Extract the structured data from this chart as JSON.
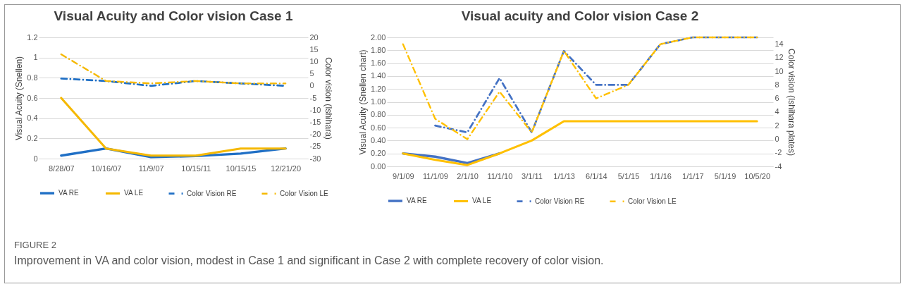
{
  "chart_data": [
    {
      "type": "line",
      "title": "Visual Acuity and Color vision Case 1",
      "ylabel": "Visual Acuity (Snellen)",
      "y2label": "Color vision (Ishihara)",
      "categories": [
        "8/28/07",
        "10/16/07",
        "11/9/07",
        "10/15/11",
        "10/15/15",
        "12/21/20"
      ],
      "series": [
        {
          "name": "VA RE",
          "color": "#1f6fc5",
          "line_style": "solid",
          "values": [
            0.03,
            0.1,
            0.015,
            0.025,
            0.05,
            0.1
          ]
        },
        {
          "name": "VA LE",
          "color": "#f5b800",
          "line_style": "solid",
          "values": [
            0.6,
            0.1,
            0.03,
            0.03,
            0.1,
            0.1
          ]
        },
        {
          "name": "Color Vision RE",
          "color": "#1f6fc5",
          "line_style": "dashed",
          "axis": "y2",
          "values": [
            3,
            2,
            0,
            2,
            1,
            0
          ]
        },
        {
          "name": "Color Vision LE",
          "color": "#f5b800",
          "line_style": "dashed",
          "axis": "y2",
          "values": [
            13,
            2,
            1,
            2,
            1,
            1
          ]
        }
      ],
      "ylim": [
        0,
        1.2
      ],
      "yticks": [
        0,
        0.2,
        0.4,
        0.6,
        0.8,
        1,
        1.2
      ],
      "y2lim": [
        -30,
        20
      ],
      "y2ticks": [
        -30,
        -25,
        -20,
        -15,
        -10,
        -5,
        0,
        5,
        10,
        15,
        20
      ],
      "grid": "y",
      "legend": "bottom",
      "annotations": [
        "FIGURE 2",
        "Improvement in VA and color vision, modest in Case 1 and significant in Case 2 with complete recovery of color vision."
      ]
    },
    {
      "type": "line",
      "title": "Visual acuity and Color vision Case 2",
      "ylabel": "Visual Acuity (Snellen chart)",
      "y2label": "Color vision (Ishihara plates)",
      "categories": [
        "9/1/09",
        "11/1/09",
        "2/1/10",
        "11/1/10",
        "3/1/11",
        "1/1/13",
        "6/1/14",
        "5/1/15",
        "1/1/16",
        "1/1/17",
        "5/1/19",
        "10/5/20"
      ],
      "series": [
        {
          "name": "VA RE",
          "color": "#4472c4",
          "line_style": "solid",
          "values": [
            0.2,
            0.15,
            0.05,
            0.2,
            null,
            null,
            null,
            null,
            null,
            null,
            null,
            null
          ]
        },
        {
          "name": "VA LE",
          "color": "#ffc000",
          "line_style": "solid",
          "values": [
            0.2,
            0.1,
            0.02,
            0.2,
            0.4,
            0.7,
            0.7,
            0.7,
            0.7,
            0.7,
            0.7,
            0.7
          ]
        },
        {
          "name": "Color Vision RE",
          "color": "#4472c4",
          "line_style": "dashed",
          "axis": "y2",
          "values": [
            null,
            2,
            1,
            9,
            1,
            13,
            8,
            8,
            14,
            15,
            15,
            15
          ]
        },
        {
          "name": "Color Vision LE",
          "color": "#ffc000",
          "line_style": "dashed",
          "axis": "y2",
          "values": [
            14,
            3,
            0,
            7,
            1,
            13,
            6,
            8,
            14,
            15,
            15,
            15
          ]
        }
      ],
      "ylim": [
        0,
        2
      ],
      "yticks": [
        {
          "value": 0,
          "label": "0.00"
        },
        {
          "value": 0.2,
          "label": "0.20"
        },
        {
          "value": 0.4,
          "label": "0.40"
        },
        {
          "value": 0.6,
          "label": "0.60"
        },
        {
          "value": 0.8,
          "label": "0.80"
        },
        {
          "value": 1,
          "label": "1.00"
        },
        {
          "value": 1.2,
          "label": "1.20"
        },
        {
          "value": 1.4,
          "label": "1.40"
        },
        {
          "value": 1.6,
          "label": "1.60"
        },
        {
          "value": 1.8,
          "label": "1.80"
        },
        {
          "value": 2,
          "label": "2.00"
        }
      ],
      "y2lim": [
        -4,
        15
      ],
      "y2ticks": [
        -4,
        -2,
        0,
        2,
        4,
        6,
        8,
        10,
        12,
        14
      ],
      "grid": "y",
      "legend": "bottom"
    }
  ]
}
